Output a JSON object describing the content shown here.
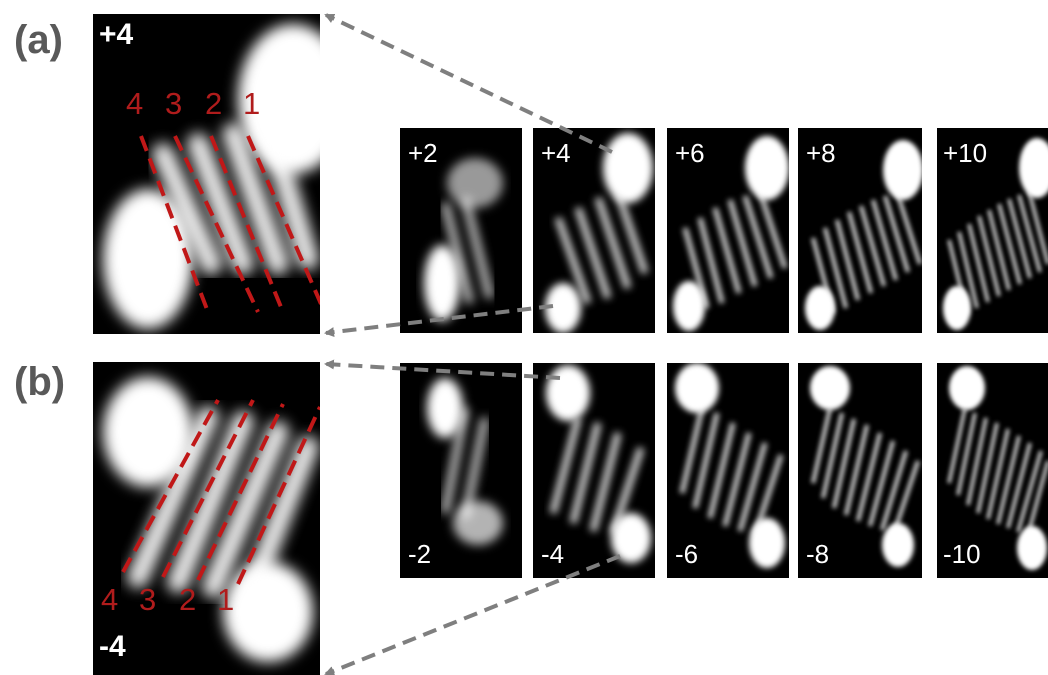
{
  "panels": {
    "a": {
      "label": "(a)",
      "big_label": "+4",
      "order_labels": [
        "4",
        "3",
        "2",
        "1"
      ],
      "thumb_labels": [
        "+2",
        "+4",
        "+6",
        "+8",
        "+10"
      ]
    },
    "b": {
      "label": "(b)",
      "big_label": "-4",
      "order_labels": [
        "4",
        "3",
        "2",
        "1"
      ],
      "thumb_labels": [
        "-2",
        "-4",
        "-6",
        "-8",
        "-10"
      ]
    }
  },
  "colors": {
    "panel_label": "#595959",
    "order_marks": "#b01c1c",
    "arrows": "#7f7f7f"
  }
}
